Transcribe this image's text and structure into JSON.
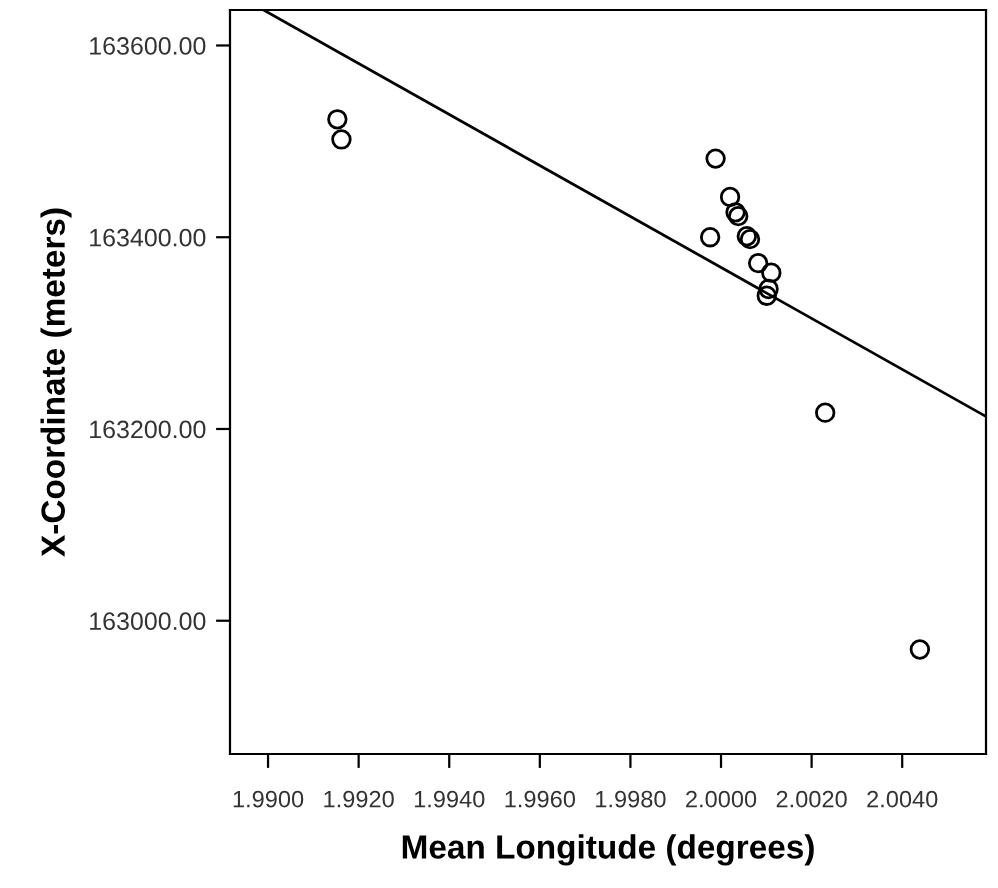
{
  "chart_data": {
    "type": "scatter",
    "xlabel": "Mean Longitude (degrees)",
    "ylabel": "X-Coordinate (meters)",
    "xlim": [
      1.98916,
      2.00585
    ],
    "ylim": [
      162861,
      163637
    ],
    "xticks": [
      {
        "value": 1.99,
        "label": "1.9900"
      },
      {
        "value": 1.992,
        "label": "1.9920"
      },
      {
        "value": 1.994,
        "label": "1.9940"
      },
      {
        "value": 1.996,
        "label": "1.9960"
      },
      {
        "value": 1.998,
        "label": "1.9980"
      },
      {
        "value": 2.0,
        "label": "2.0000"
      },
      {
        "value": 2.002,
        "label": "2.0020"
      },
      {
        "value": 2.004,
        "label": "2.0040"
      }
    ],
    "yticks": [
      {
        "value": 163000,
        "label": "163000.00"
      },
      {
        "value": 163200,
        "label": "163200.00"
      },
      {
        "value": 163400,
        "label": "163400.00"
      },
      {
        "value": 163600,
        "label": "163600.00"
      }
    ],
    "grid": false,
    "legend": false,
    "series": [
      {
        "marker": "circle",
        "color": "#000000",
        "x": [
          1.99153,
          1.99162,
          1.99988,
          1.99976,
          2.0002,
          2.00032,
          2.00038,
          2.00057,
          2.00064,
          2.00082,
          2.00111,
          2.00105,
          2.00101,
          2.0023,
          2.00439
        ],
        "values": [
          163523,
          163502,
          163482,
          163400,
          163442,
          163426,
          163422,
          163401,
          163398,
          163373,
          163363,
          163346,
          163339,
          163217,
          162970
        ]
      },
      {
        "type": "line",
        "marker": "none",
        "line_style": "solid",
        "color": "#000000",
        "x": [
          1.9899,
          2.00585
        ],
        "values": [
          163637,
          163213
        ]
      }
    ]
  }
}
